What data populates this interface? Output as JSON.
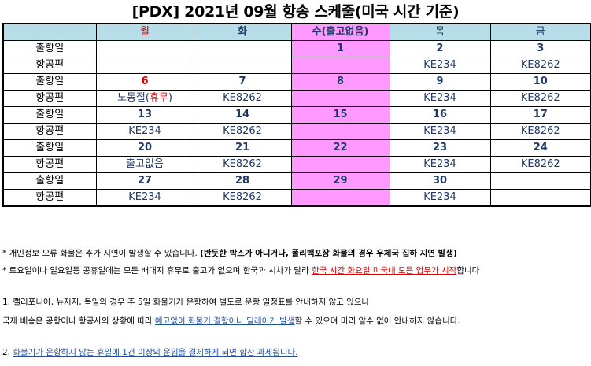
{
  "title": "[PDX] 2021년 09월 항송 스케줄(미국 시간 기준)",
  "header": {
    "mon": "월",
    "tue": "화",
    "wed": "수(출고없음)",
    "thu": "목",
    "fri": "금"
  },
  "labels": {
    "ship_day": "출항일",
    "flight": "항공편"
  },
  "weeks": [
    {
      "dates": [
        "",
        "",
        "1",
        "2",
        "3"
      ],
      "flights": [
        "",
        "",
        "",
        "KE234",
        "KE8262"
      ]
    },
    {
      "dates": [
        "6",
        "7",
        "8",
        "9",
        "10"
      ],
      "flights": [
        "노동절(",
        "KE8262",
        "",
        "KE234",
        "KE8262"
      ],
      "mon_flight_suffix": "휴무",
      "mon_flight_close": ")"
    },
    {
      "dates": [
        "13",
        "14",
        "15",
        "16",
        "17"
      ],
      "flights": [
        "KE234",
        "KE8262",
        "",
        "KE234",
        "KE8262"
      ]
    },
    {
      "dates": [
        "20",
        "21",
        "22",
        "23",
        "24"
      ],
      "flights": [
        "출고없음",
        "KE8262",
        "",
        "KE234",
        "KE8262"
      ]
    },
    {
      "dates": [
        "27",
        "28",
        "29",
        "30",
        ""
      ],
      "flights": [
        "KE234",
        "KE8262",
        "",
        "KE234",
        ""
      ]
    }
  ],
  "notes": {
    "n1_plain": "* 개인정보 오류 화물은 추가 지연이 발생할 수 있습니다. ",
    "n1_bold": "(반듯한 박스가 아니거나, 폴리백포장 화물의 경우 우체국 집하 지연 발생)",
    "n2_plain": "* 토요일이나 일요일등 공휴일에는 모든 배대지 휴무로 출고가 없으며 한국과 시차가 달라 ",
    "n2_red": "한국 시간 화요일 미국내 모든 업무가 시작",
    "n2_end": "합니다",
    "n3": "1. 캘리포니아, 뉴저지, 독일의 경우 주 5일 화물기가 운항하여 별도로 운항 일정표를 안내하지 않고 있으나",
    "n4_plain": "국제 배송은 공항이나 항공사의 상황에 따라 ",
    "n4_blue": "예고없이 화물기 결항이나 딜레이가 발생",
    "n4_end": "할 수 있으며 미리 알수 없어 안내하지 않습니다.",
    "n5_num": "2. ",
    "n5_blue": "화물기가 운항하지 않는 휴일에  1건 이상의 운임을 결제하게 되면 합산 과세됩니다."
  }
}
